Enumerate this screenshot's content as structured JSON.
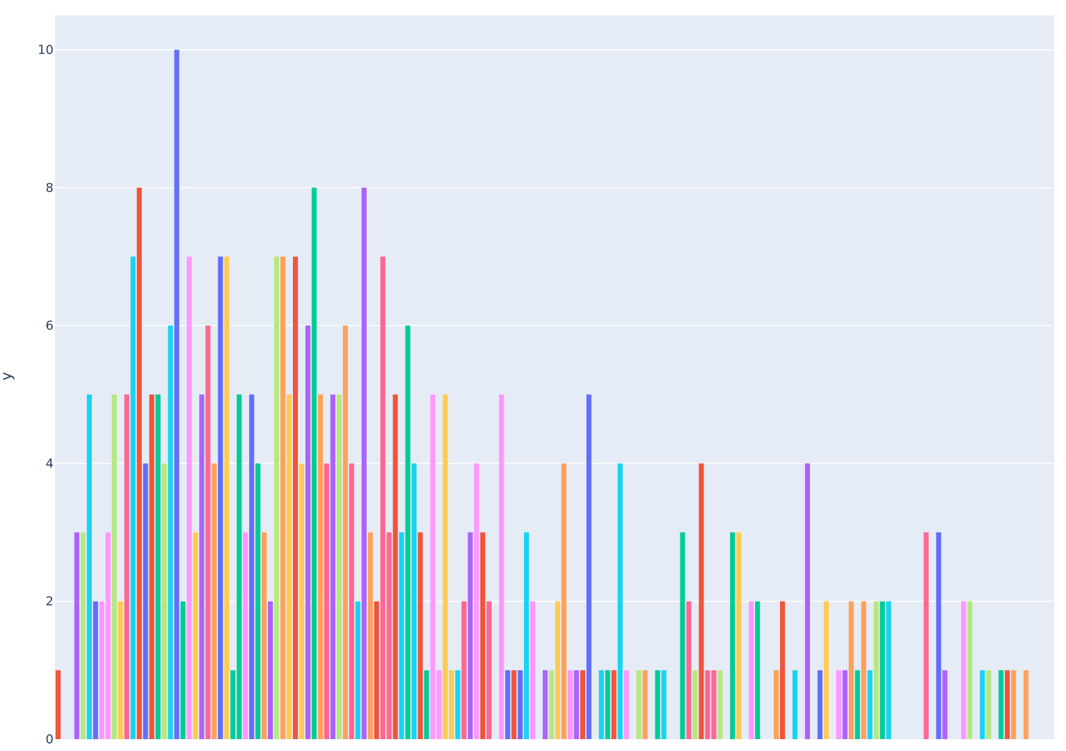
{
  "chart_data": {
    "type": "bar",
    "title": "",
    "xlabel": "",
    "ylabel": "y",
    "ylim": [
      0,
      10.5
    ],
    "ytick_values": [
      0,
      2,
      4,
      6,
      8,
      10
    ],
    "ytick_labels": [
      "0",
      "2",
      "4",
      "6",
      "8",
      "10"
    ],
    "grid": true,
    "legend": "none",
    "colors": {
      "plot_bg": "#e5ecf6",
      "grid": "#ffffff",
      "text": "#2a3f5f",
      "palette": [
        "#636efa",
        "#EF553B",
        "#00cc96",
        "#ab63fa",
        "#FFA15A",
        "#19d3f3",
        "#FF6692",
        "#B6E880",
        "#FF97FF",
        "#FECB52"
      ]
    },
    "x": [
      1,
      2,
      3,
      4,
      5,
      6,
      7,
      8,
      9,
      10,
      11,
      12,
      13,
      14,
      15,
      16,
      17,
      18,
      19,
      20,
      21,
      22,
      23,
      24,
      25,
      26,
      27,
      28,
      29,
      30,
      31,
      32,
      33,
      34,
      35,
      36,
      37,
      38,
      39,
      40,
      41,
      42,
      43,
      44,
      45,
      46,
      47,
      48,
      49,
      50,
      51,
      52,
      53,
      54,
      55,
      56,
      57,
      58,
      59,
      60,
      61,
      62,
      63,
      64,
      65,
      66,
      67,
      68,
      69,
      70,
      71,
      72,
      73,
      74,
      75,
      76,
      77,
      78,
      79,
      80,
      81,
      82,
      83,
      84,
      85,
      86,
      87,
      88,
      89,
      90,
      91,
      92,
      93,
      94,
      95,
      96,
      97,
      98,
      99,
      100,
      101,
      102,
      103,
      104,
      105,
      106,
      107,
      108,
      109,
      110,
      111,
      112,
      113,
      114,
      115,
      116,
      117,
      118,
      119,
      120,
      121,
      122,
      123,
      124,
      125,
      126,
      127,
      128,
      129,
      130,
      131,
      132,
      133,
      134,
      135,
      136,
      137,
      138,
      139,
      140,
      141,
      142,
      143,
      144,
      145,
      146,
      147,
      148,
      149,
      150,
      151,
      152,
      153,
      154,
      155,
      156,
      157,
      158,
      159,
      160
    ],
    "values": [
      1,
      0,
      0,
      3,
      3,
      5,
      2,
      2,
      3,
      5,
      2,
      5,
      7,
      8,
      4,
      5,
      5,
      4,
      6,
      10,
      2,
      7,
      3,
      5,
      6,
      4,
      7,
      7,
      1,
      5,
      3,
      5,
      4,
      3,
      2,
      7,
      7,
      5,
      7,
      4,
      6,
      8,
      5,
      4,
      5,
      5,
      6,
      4,
      2,
      8,
      3,
      2,
      7,
      3,
      5,
      3,
      6,
      4,
      3,
      1,
      5,
      1,
      5,
      1,
      1,
      2,
      3,
      4,
      3,
      2,
      0,
      5,
      1,
      1,
      1,
      3,
      2,
      0,
      1,
      1,
      2,
      4,
      1,
      1,
      1,
      5,
      0,
      1,
      1,
      1,
      4,
      1,
      0,
      1,
      1,
      0,
      1,
      1,
      0,
      0,
      3,
      2,
      1,
      4,
      1,
      1,
      1,
      0,
      3,
      3,
      0,
      2,
      2,
      0,
      0,
      1,
      2,
      0,
      1,
      0,
      4,
      0,
      1,
      2,
      0,
      1,
      1,
      2,
      1,
      2,
      1,
      2,
      2,
      2,
      0,
      0,
      0,
      0,
      0,
      3,
      0,
      3,
      1,
      0,
      0,
      2,
      2,
      0,
      1,
      1,
      0,
      1,
      1,
      1,
      0,
      1,
      0,
      0,
      0,
      0
    ],
    "bar_colors": [
      "#EF553B",
      "#FF6692",
      "#B6E880",
      "#ab63fa",
      "#B6E880",
      "#19d3f3",
      "#636efa",
      "#FF97FF",
      "#FF97FF",
      "#B6E880",
      "#FECB52",
      "#FF6692",
      "#19d3f3",
      "#EF553B",
      "#636efa",
      "#EF553B",
      "#00cc96",
      "#B6E880",
      "#19d3f3",
      "#636efa",
      "#00cc96",
      "#FF97FF",
      "#FECB52",
      "#ab63fa",
      "#FF6692",
      "#FFA15A",
      "#636efa",
      "#FECB52",
      "#00cc96",
      "#00cc96",
      "#FF97FF",
      "#636efa",
      "#00cc96",
      "#FFA15A",
      "#ab63fa",
      "#B6E880",
      "#FFA15A",
      "#FECB52",
      "#EF553B",
      "#FECB52",
      "#ab63fa",
      "#00cc96",
      "#FFA15A",
      "#FF6692",
      "#ab63fa",
      "#B6E880",
      "#FFA15A",
      "#FF6692",
      "#19d3f3",
      "#ab63fa",
      "#FFA15A",
      "#EF553B",
      "#FF6692",
      "#FF6692",
      "#EF553B",
      "#19d3f3",
      "#00cc96",
      "#19d3f3",
      "#EF553B",
      "#00cc96",
      "#FF97FF",
      "#FF97FF",
      "#FECB52",
      "#FECB52",
      "#19d3f3",
      "#FF6692",
      "#ab63fa",
      "#FF97FF",
      "#EF553B",
      "#FF6692",
      "#FFA15A",
      "#FF97FF",
      "#636efa",
      "#EF553B",
      "#636efa",
      "#19d3f3",
      "#FF97FF",
      "#FFA15A",
      "#ab63fa",
      "#B6E880",
      "#FECB52",
      "#FFA15A",
      "#FF97FF",
      "#ab63fa",
      "#EF553B",
      "#636efa",
      "#FFA15A",
      "#19d3f3",
      "#00cc96",
      "#EF553B",
      "#19d3f3",
      "#FF97FF",
      "#FECB52",
      "#B6E880",
      "#FFA15A",
      "#FFA15A",
      "#00cc96",
      "#19d3f3",
      "#FFA15A",
      "#FFA15A",
      "#00cc96",
      "#FF6692",
      "#B6E880",
      "#EF553B",
      "#FF6692",
      "#FF6692",
      "#B6E880",
      "#FFA15A",
      "#00cc96",
      "#FECB52",
      "#FFA15A",
      "#FF97FF",
      "#00cc96",
      "#FFA15A",
      "#FFA15A",
      "#FFA15A",
      "#EF553B",
      "#FFA15A",
      "#19d3f3",
      "#FFA15A",
      "#ab63fa",
      "#FFA15A",
      "#636efa",
      "#FECB52",
      "#FFA15A",
      "#FF97FF",
      "#ab63fa",
      "#FFA15A",
      "#00cc96",
      "#FFA15A",
      "#19d3f3",
      "#B6E880",
      "#00cc96",
      "#19d3f3",
      "#FFA15A",
      "#FFA15A",
      "#FFA15A",
      "#FFA15A",
      "#FFA15A",
      "#FF6692",
      "#FFA15A",
      "#636efa",
      "#ab63fa",
      "#FFA15A",
      "#FFA15A",
      "#FF97FF",
      "#B6E880",
      "#FFA15A",
      "#19d3f3",
      "#B6E880",
      "#FFA15A",
      "#00cc96",
      "#EF553B",
      "#FFA15A",
      "#FFA15A",
      "#FFA15A",
      "#FFA15A",
      "#FFA15A",
      "#FFA15A",
      "#FFA15A"
    ]
  }
}
